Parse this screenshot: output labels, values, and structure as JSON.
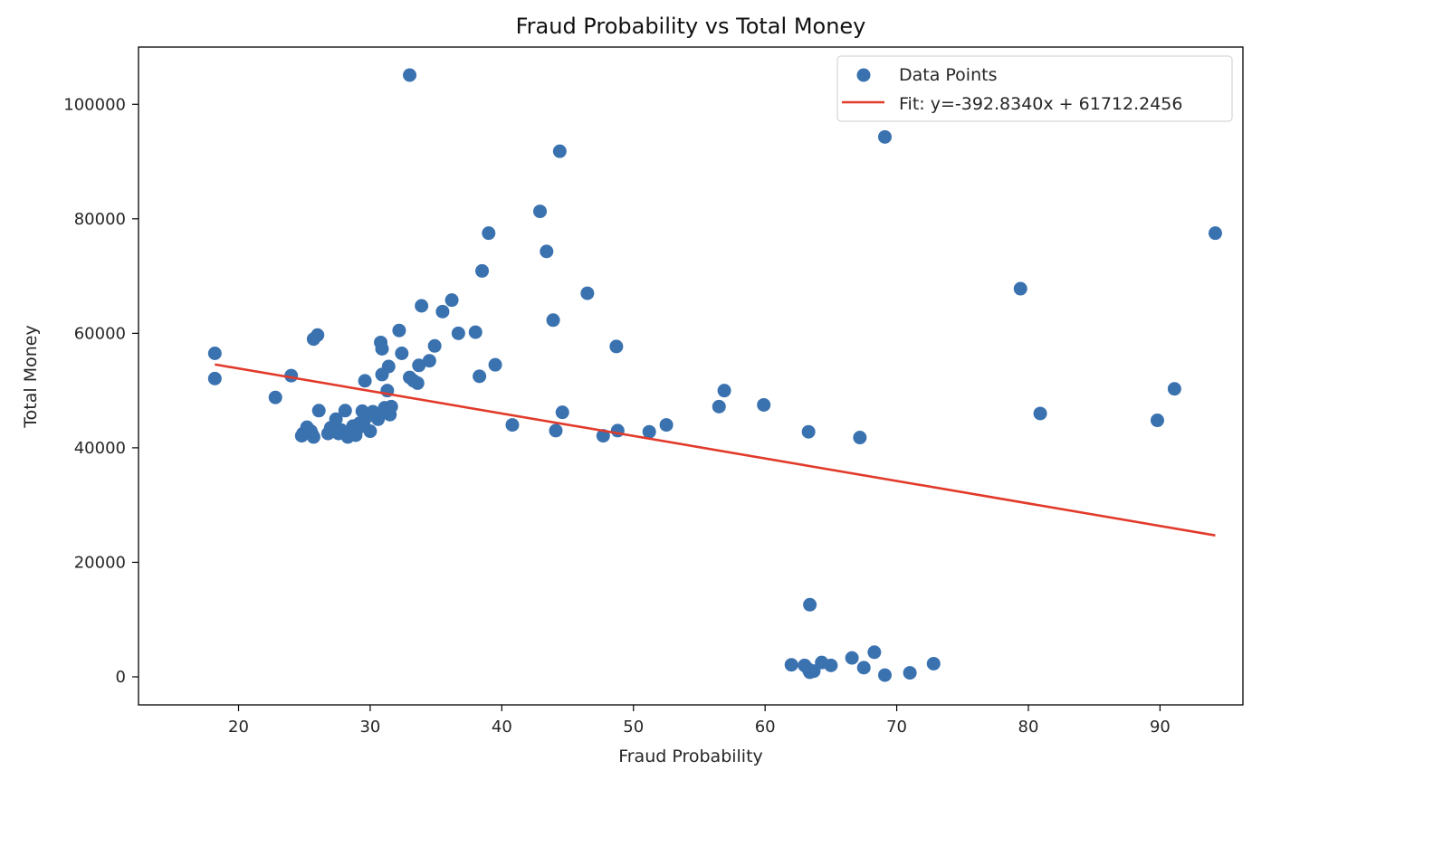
{
  "chart_data": {
    "type": "scatter",
    "title": "Fraud Probability vs Total Money",
    "xlabel": "Fraud Probability",
    "ylabel": "Total Money",
    "xlim": [
      12.4,
      96.3
    ],
    "ylim": [
      -4900,
      110000
    ],
    "xticks": [
      20,
      30,
      40,
      50,
      60,
      70,
      80,
      90
    ],
    "yticks": [
      0,
      20000,
      40000,
      60000,
      80000,
      100000
    ],
    "grid": false,
    "legend_position": "top-right",
    "colors": {
      "points": "#3a72b0",
      "fit_line": "#e23a2a"
    },
    "series": [
      {
        "name": "Data Points",
        "kind": "scatter",
        "points": [
          [
            18.2,
            56500
          ],
          [
            18.2,
            52100
          ],
          [
            22.8,
            48800
          ],
          [
            24.0,
            52600
          ],
          [
            24.8,
            42100
          ],
          [
            24.9,
            42500
          ],
          [
            25.2,
            43600
          ],
          [
            25.5,
            42900
          ],
          [
            25.6,
            42300
          ],
          [
            25.7,
            41900
          ],
          [
            25.7,
            59000
          ],
          [
            26.0,
            59700
          ],
          [
            26.1,
            46500
          ],
          [
            26.8,
            42500
          ],
          [
            27.0,
            43500
          ],
          [
            27.4,
            45000
          ],
          [
            27.6,
            42500
          ],
          [
            27.8,
            43100
          ],
          [
            28.1,
            46500
          ],
          [
            28.3,
            41900
          ],
          [
            28.4,
            42400
          ],
          [
            28.6,
            42900
          ],
          [
            28.7,
            43800
          ],
          [
            28.9,
            42200
          ],
          [
            29.1,
            43500
          ],
          [
            29.2,
            44300
          ],
          [
            29.4,
            46400
          ],
          [
            29.5,
            44000
          ],
          [
            29.6,
            51700
          ],
          [
            29.8,
            45500
          ],
          [
            30.0,
            42900
          ],
          [
            30.2,
            46300
          ],
          [
            30.6,
            45000
          ],
          [
            30.8,
            58400
          ],
          [
            30.9,
            57300
          ],
          [
            30.9,
            52800
          ],
          [
            31.1,
            47000
          ],
          [
            31.2,
            46200
          ],
          [
            31.3,
            50000
          ],
          [
            31.4,
            54200
          ],
          [
            31.5,
            45800
          ],
          [
            31.6,
            47200
          ],
          [
            32.2,
            60500
          ],
          [
            32.4,
            56500
          ],
          [
            33.0,
            105100
          ],
          [
            33.0,
            52300
          ],
          [
            33.3,
            51700
          ],
          [
            33.6,
            51300
          ],
          [
            33.7,
            54400
          ],
          [
            33.9,
            64800
          ],
          [
            34.5,
            55200
          ],
          [
            34.9,
            57800
          ],
          [
            35.5,
            63800
          ],
          [
            36.2,
            65800
          ],
          [
            36.7,
            60000
          ],
          [
            38.0,
            60200
          ],
          [
            38.3,
            52500
          ],
          [
            38.5,
            70900
          ],
          [
            39.0,
            77500
          ],
          [
            39.5,
            54500
          ],
          [
            40.8,
            44000
          ],
          [
            42.9,
            81300
          ],
          [
            43.4,
            74300
          ],
          [
            43.9,
            62300
          ],
          [
            44.1,
            43000
          ],
          [
            44.4,
            91800
          ],
          [
            44.6,
            46200
          ],
          [
            46.5,
            67000
          ],
          [
            47.7,
            42100
          ],
          [
            48.7,
            57700
          ],
          [
            48.8,
            43000
          ],
          [
            51.2,
            42800
          ],
          [
            52.5,
            44000
          ],
          [
            56.5,
            47200
          ],
          [
            56.9,
            50000
          ],
          [
            59.9,
            47500
          ],
          [
            63.3,
            42800
          ],
          [
            67.2,
            41800
          ],
          [
            69.1,
            94300
          ],
          [
            79.4,
            67800
          ],
          [
            80.9,
            46000
          ],
          [
            89.8,
            44800
          ],
          [
            91.1,
            50300
          ],
          [
            94.2,
            77500
          ],
          [
            63.4,
            12600
          ],
          [
            62.0,
            2100
          ],
          [
            63.0,
            2000
          ],
          [
            63.3,
            1300
          ],
          [
            63.4,
            800
          ],
          [
            63.7,
            1000
          ],
          [
            64.3,
            2500
          ],
          [
            65.0,
            2000
          ],
          [
            66.6,
            3300
          ],
          [
            67.5,
            1600
          ],
          [
            68.3,
            4300
          ],
          [
            69.1,
            300
          ],
          [
            71.0,
            700
          ],
          [
            72.8,
            2300
          ]
        ]
      },
      {
        "name": "Fit: y=-392.8340x + 61712.2456",
        "kind": "line",
        "slope": -392.834,
        "intercept": 61712.2456,
        "x_range": [
          18.2,
          94.2
        ]
      }
    ]
  }
}
